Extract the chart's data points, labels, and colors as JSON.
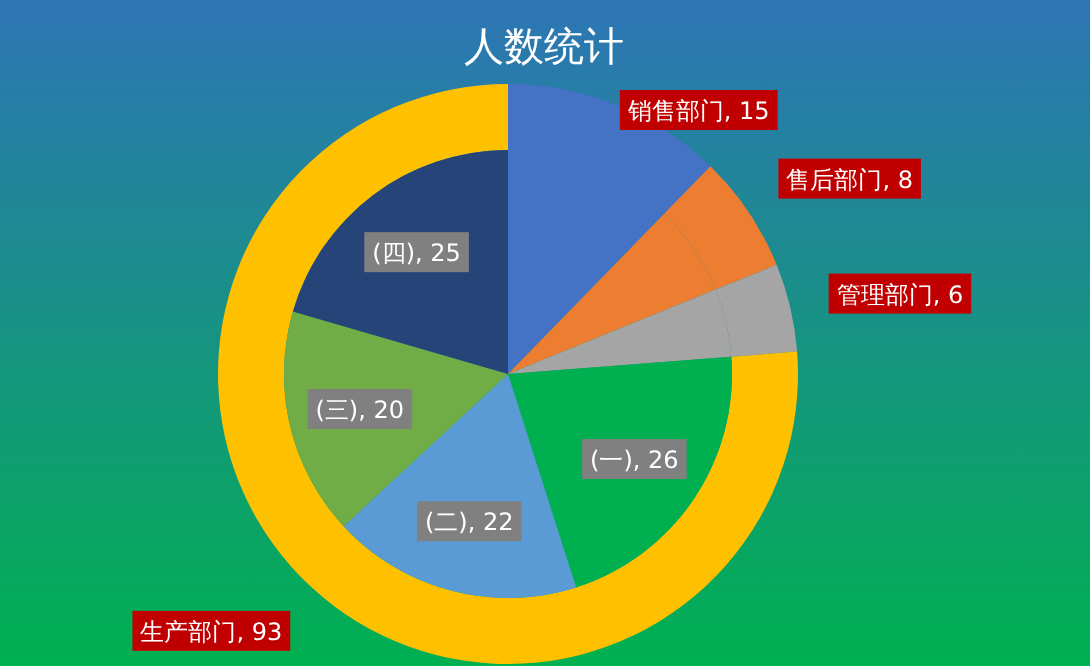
{
  "chart_data": [
    {
      "type": "donut",
      "title": "人数统计",
      "categories": [
        "销售部门",
        "售后部门",
        "管理部门",
        "生产部门"
      ],
      "values": [
        15,
        8,
        6,
        93
      ],
      "value_labels": [
        ", 15",
        ", 8",
        ", 6",
        ", 93"
      ],
      "colors": [
        "#4472c4",
        "#ed7d31",
        "#a5a5a5",
        "#ffc000"
      ]
    },
    {
      "type": "pie",
      "categories": [
        null,
        null,
        null,
        "(一)",
        "(二)",
        "(三)",
        "(四)"
      ],
      "values": [
        15,
        8,
        6,
        26,
        22,
        20,
        25
      ],
      "value_labels": [
        null,
        null,
        null,
        ", 26",
        ", 22",
        ", 20",
        ", 25"
      ],
      "colors": [
        "#4472c4",
        "#ed7d31",
        "#a5a5a5",
        "#00b050",
        "#5b9bd5",
        "#70ad47",
        "#264478"
      ]
    }
  ]
}
